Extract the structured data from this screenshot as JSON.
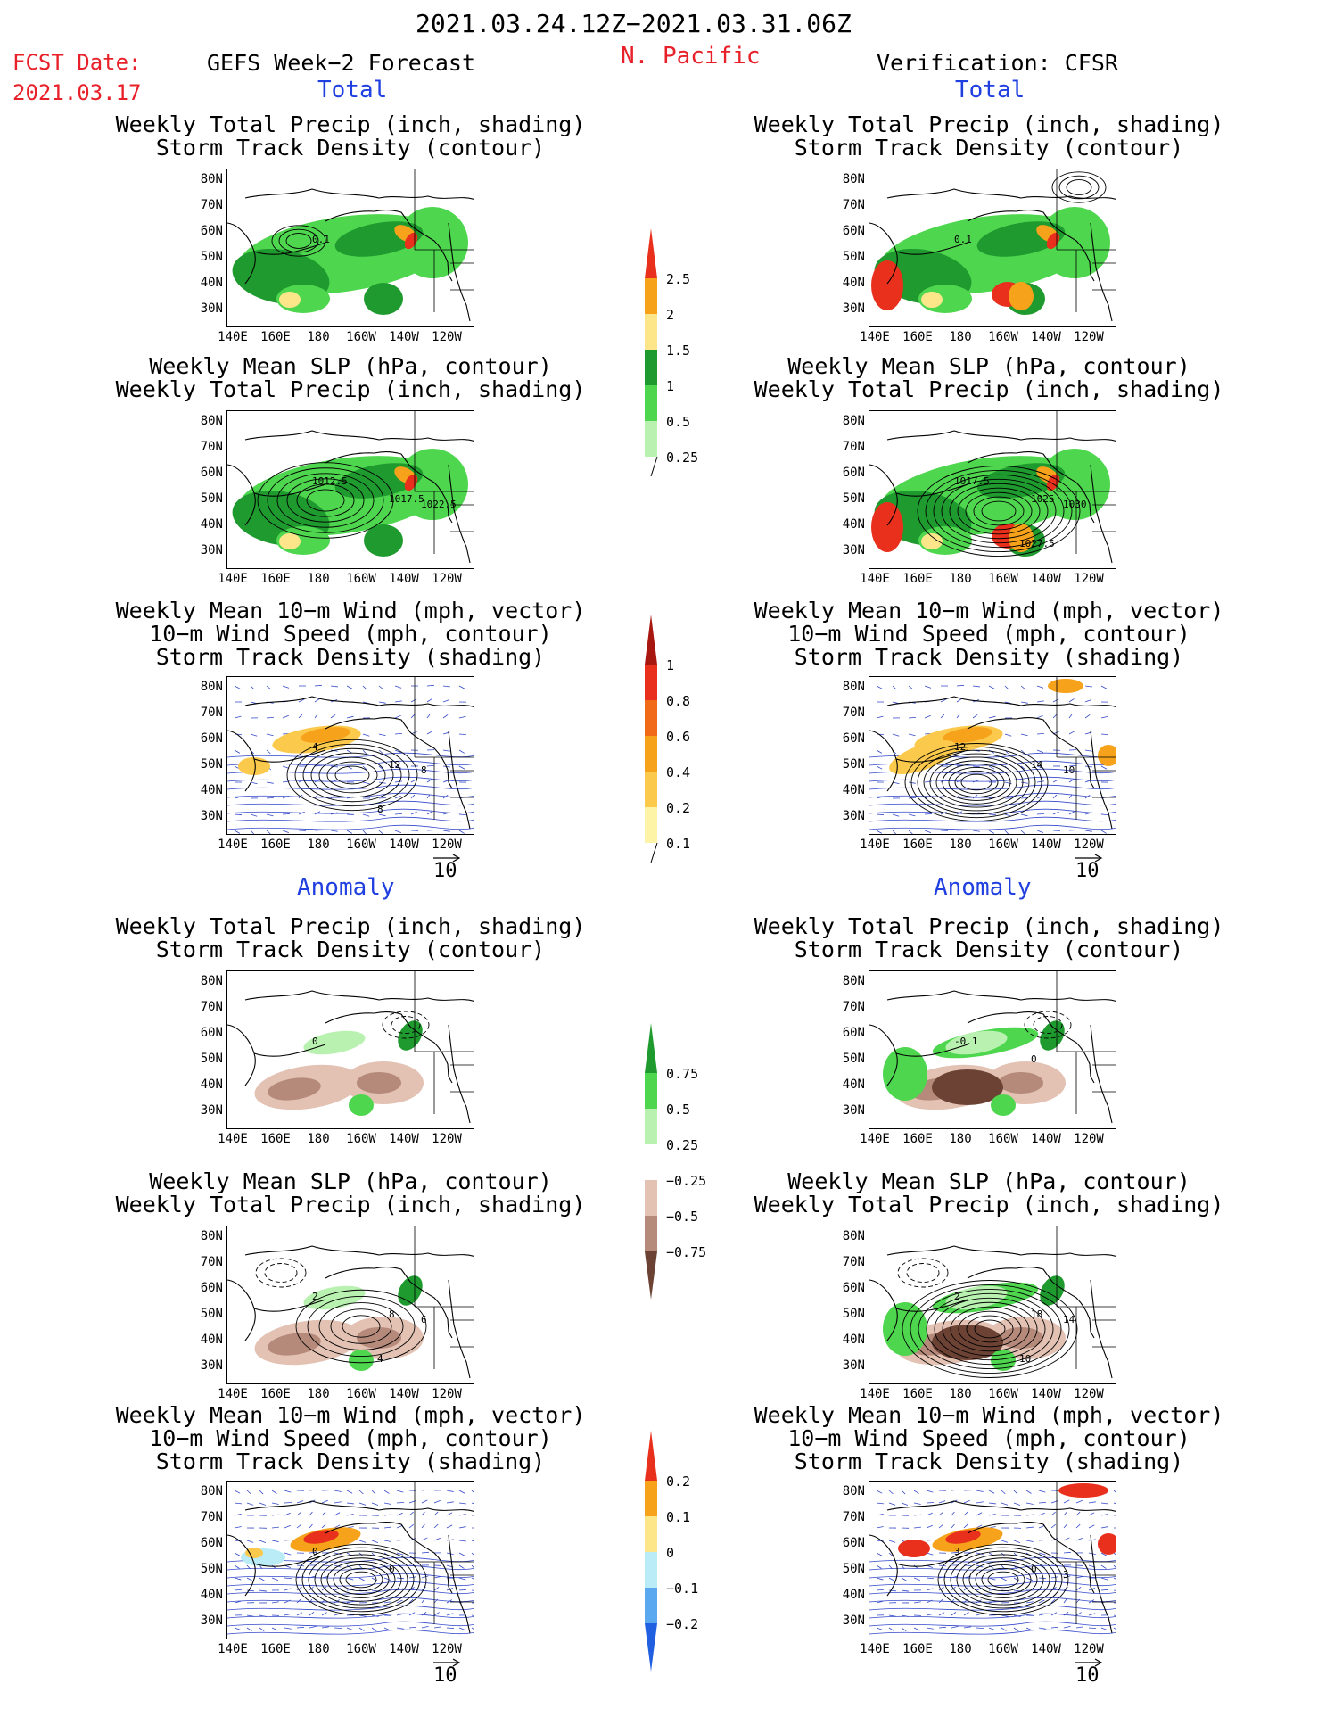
{
  "header": {
    "date_range": "2021.03.24.12Z−2021.03.31.06Z",
    "fcst_label": "FCST Date:",
    "fcst_date": "2021.03.17",
    "forecast_title": "GEFS Week−2 Forecast",
    "region": "N. Pacific",
    "verification": "Verification: CFSR"
  },
  "sections": {
    "total": "Total",
    "anomaly": "Anomaly"
  },
  "panel_titles": {
    "precip_storm": [
      "Weekly Total Precip (inch, shading)",
      "Storm Track Density (contour)"
    ],
    "slp_precip": [
      "Weekly Mean SLP (hPa, contour)",
      "Weekly Total Precip (inch, shading)"
    ],
    "wind_storm": [
      "Weekly Mean 10−m Wind (mph, vector)",
      "10−m Wind Speed (mph, contour)",
      "Storm Track Density (shading)"
    ]
  },
  "axes": {
    "lat": [
      "80N",
      "70N",
      "60N",
      "50N",
      "40N",
      "30N"
    ],
    "lon": [
      "140E",
      "160E",
      "180",
      "160W",
      "140W",
      "120W"
    ]
  },
  "vector_ref": "10",
  "map_labels": {
    "lt_precip": [
      "0.1"
    ],
    "lt_slp": [
      "1012.5",
      "1017.5",
      "1022.5"
    ],
    "lt_wind": [
      "4",
      "12",
      "8",
      "8"
    ],
    "rt_precip": [
      "0.1"
    ],
    "rt_slp": [
      "1017.5",
      "1025",
      "1030",
      "1027.5"
    ],
    "rt_wind": [
      "12",
      "14",
      "10"
    ],
    "la_precip": [
      "0"
    ],
    "la_slp": [
      "2",
      "8",
      "6",
      "4"
    ],
    "la_wind": [
      "0",
      "0"
    ],
    "ra_precip": [
      "-0.1",
      "0"
    ],
    "ra_slp": [
      "2",
      "18",
      "14",
      "10"
    ],
    "ra_wind": [
      "3",
      "0",
      "3"
    ]
  },
  "colorbars": {
    "precip_total": {
      "labels": [
        "2.5",
        "2",
        "1.5",
        "1",
        "0.5",
        "0.25"
      ],
      "colors": [
        "#e8301c",
        "#f7a21b",
        "#fde68a",
        "#1f9a2e",
        "#4fd64f",
        "#b9f2b0"
      ]
    },
    "storm_total": {
      "labels": [
        "1",
        "0.8",
        "0.6",
        "0.4",
        "0.2",
        "0.1"
      ],
      "colors": [
        "#a8170f",
        "#e8301c",
        "#f06a17",
        "#f7a21b",
        "#fbc94b",
        "#fdf4a8"
      ]
    },
    "precip_anom": {
      "labels": [
        "0.75",
        "0.5",
        "0.25",
        "−0.25",
        "−0.5",
        "−0.75"
      ],
      "colors": [
        "#1f9a2e",
        "#4fd64f",
        "#b9f2b0",
        "#ffffff",
        "#e3c2b4",
        "#b58a7b",
        "#6b4234"
      ]
    },
    "storm_anom": {
      "labels": [
        "0.2",
        "0.1",
        "0",
        "−0.1",
        "−0.2"
      ],
      "colors": [
        "#e8301c",
        "#f7a21b",
        "#fde68a",
        "#b9ecf7",
        "#5aa8f0",
        "#1f5fe0"
      ]
    }
  }
}
